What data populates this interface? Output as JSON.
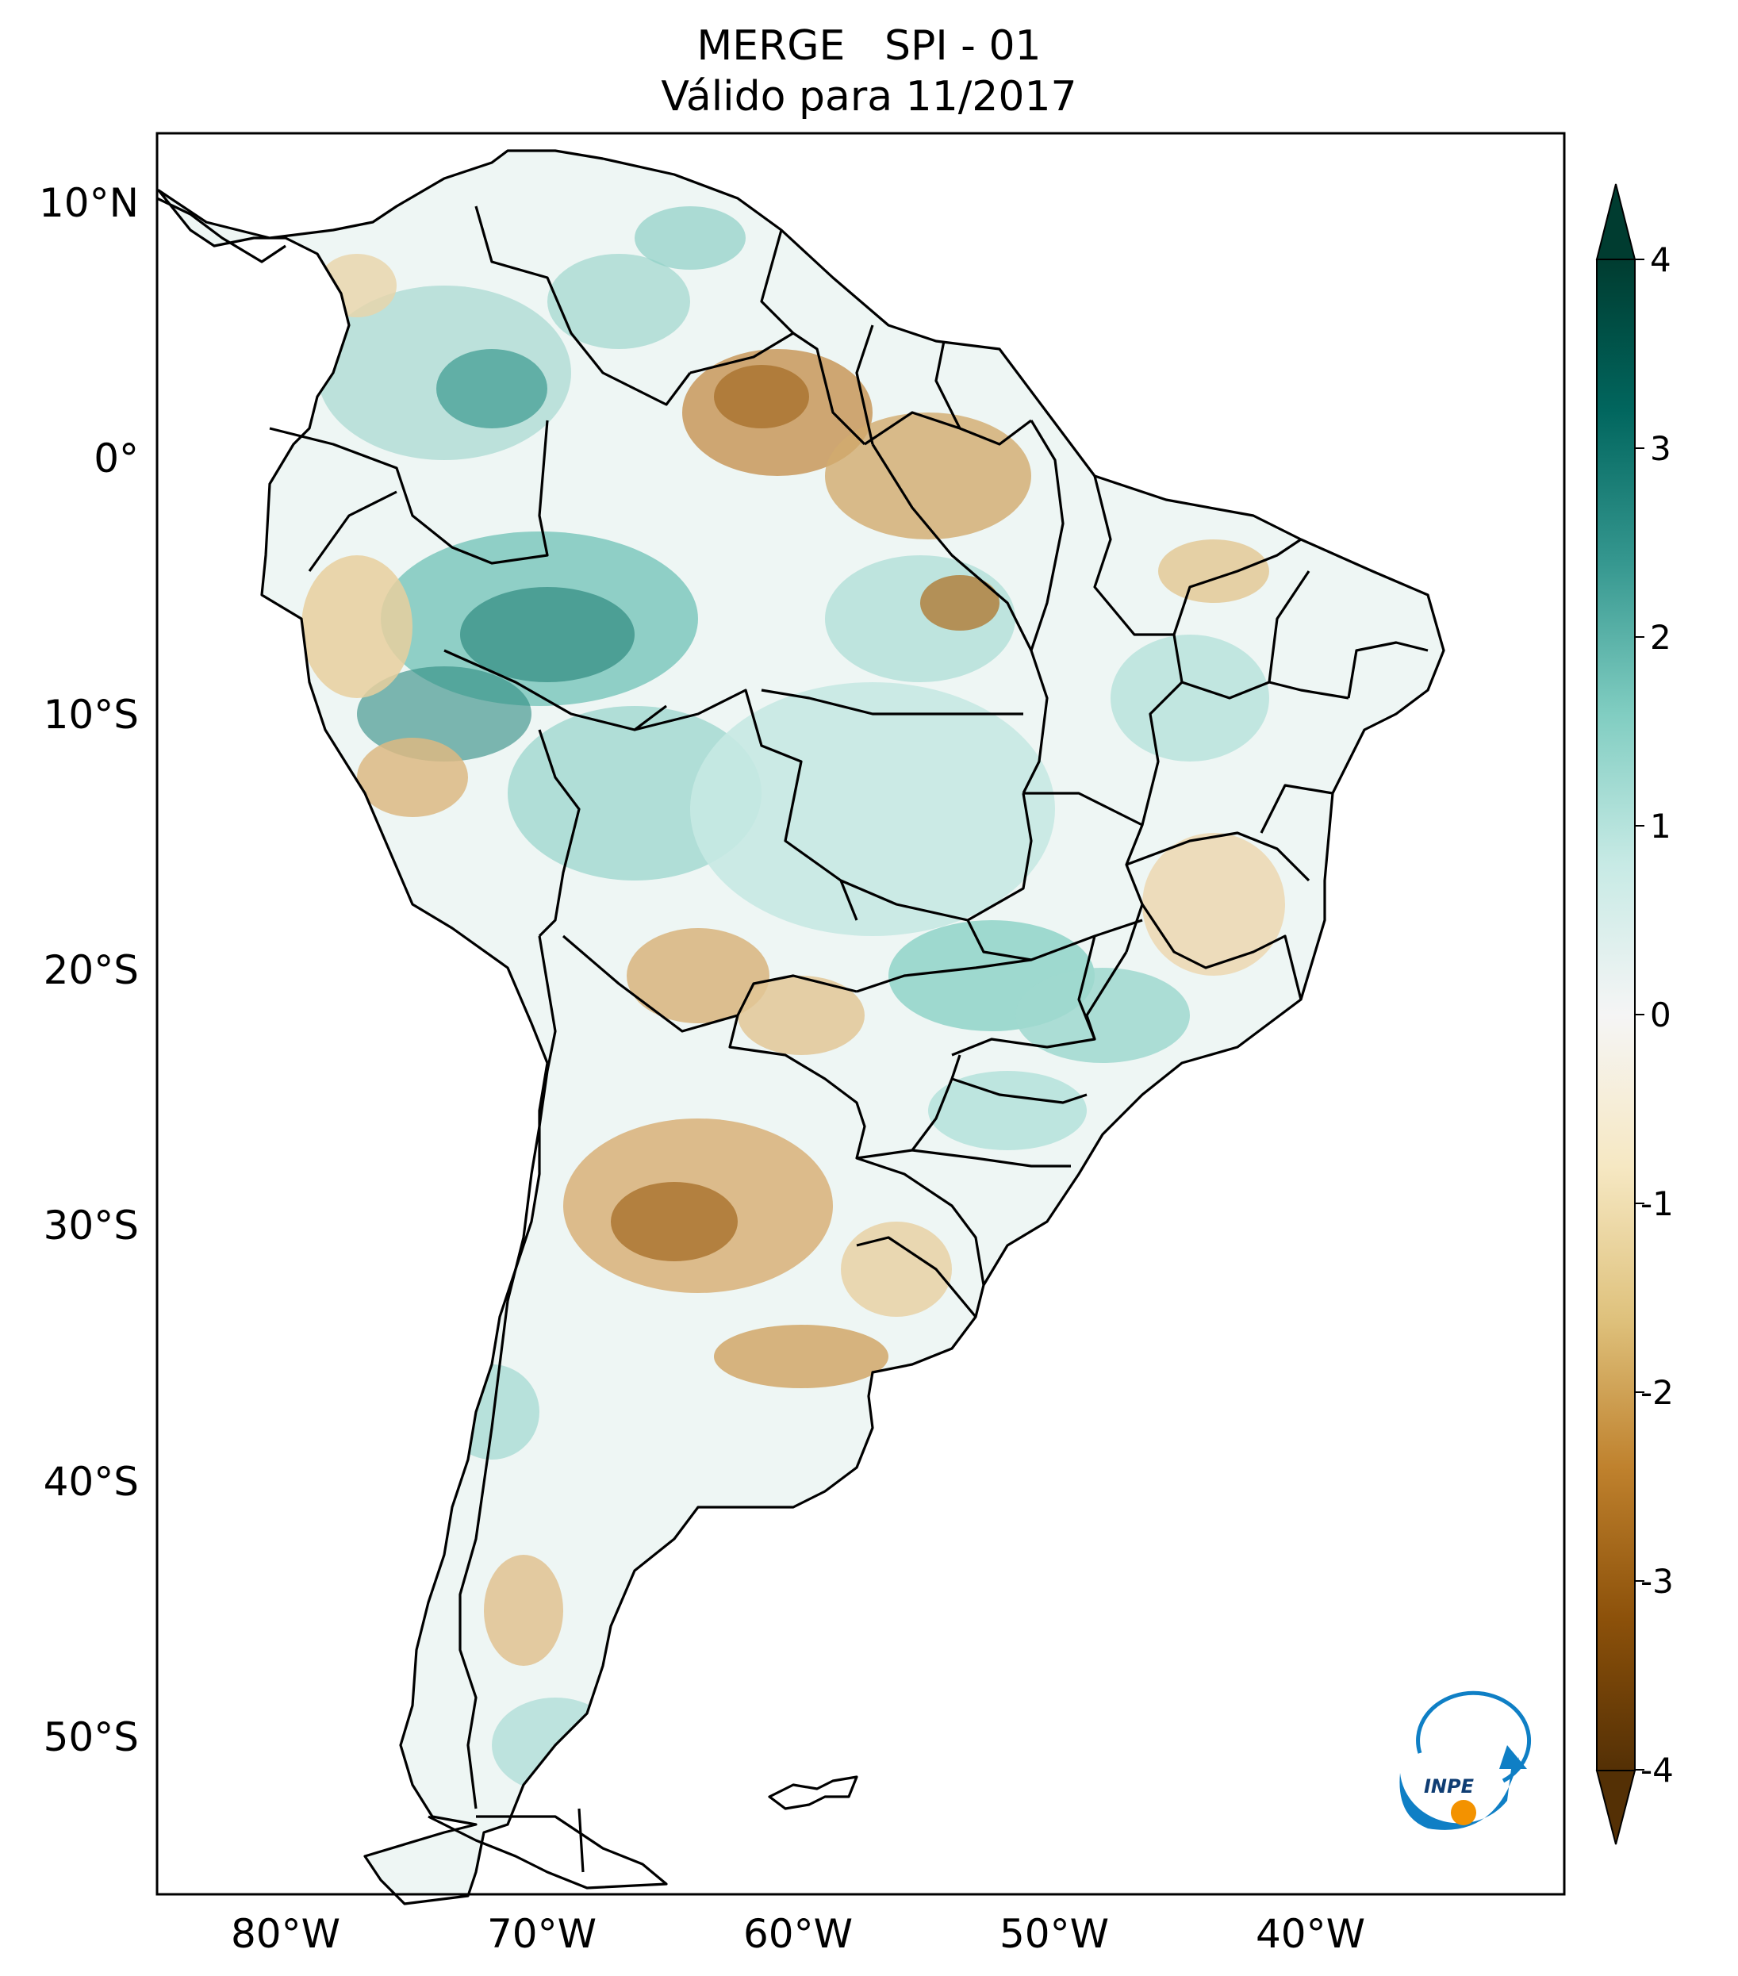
{
  "title": {
    "line1": "MERGE   SPI - 01",
    "line2": "Válido para 11/2017"
  },
  "map": {
    "lat_labels": [
      "10°N",
      "0°",
      "10°S",
      "20°S",
      "30°S",
      "40°S",
      "50°S"
    ],
    "lon_labels": [
      "80°W",
      "70°W",
      "60°W",
      "50°W",
      "40°W"
    ],
    "extent": {
      "lon": [
        -85,
        -30
      ],
      "lat": [
        -56,
        13
      ]
    },
    "colors": {
      "strong_dry": "#8c5109",
      "dry": "#dfc27d",
      "neutral": "#f5f5f5",
      "wet": "#80cdc1",
      "strong_wet": "#01665e",
      "borders": "#000000"
    }
  },
  "colorbar": {
    "ticks": [
      "4",
      "3",
      "2",
      "1",
      "0",
      "-1",
      "-2",
      "-3",
      "-4"
    ],
    "range": [
      -4,
      4
    ],
    "colors": [
      "#543005",
      "#8c510a",
      "#bf812d",
      "#dfc27d",
      "#f6e8c3",
      "#f5f5f5",
      "#c7eae5",
      "#80cdc1",
      "#35978f",
      "#01665e",
      "#003c30"
    ]
  },
  "logo": {
    "text": "INPE",
    "colors": {
      "arc": "#0f7fc5",
      "dot": "#f39200"
    }
  }
}
